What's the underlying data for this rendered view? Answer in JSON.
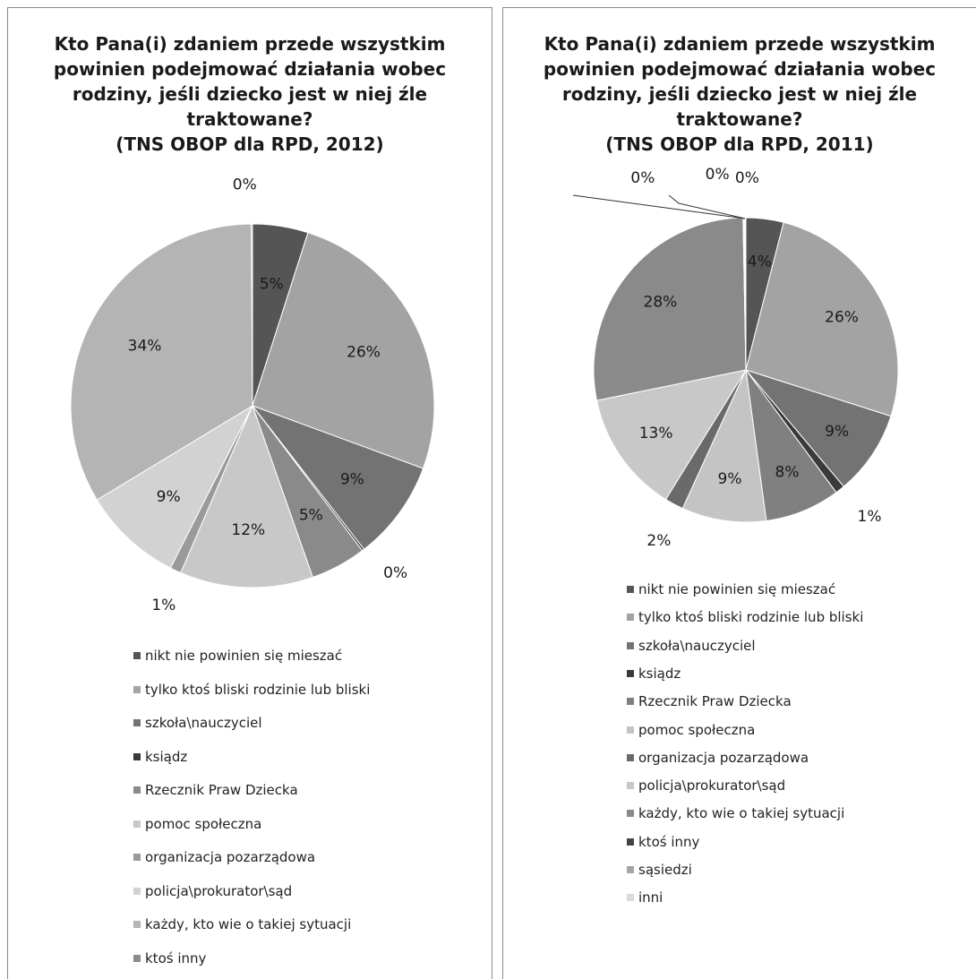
{
  "chart_data": [
    {
      "type": "pie",
      "title_lines": [
        "Kto Pana(i) zdaniem przede wszystkim",
        "powinien podejmować działania wobec",
        "rodziny, jeśli dziecko jest w niej źle",
        "traktowane?",
        "(TNS OBOP dla RPD, 2012)"
      ],
      "legend": "bottom",
      "slices": [
        {
          "label": "nikt nie powinien się mieszać",
          "value": 5,
          "display": "5%",
          "color": "#555555"
        },
        {
          "label": "tylko ktoś bliski rodzinie lub bliski",
          "value": 26,
          "display": "26%",
          "color": "#a3a3a3"
        },
        {
          "label": "szkoła\\nauczyciel",
          "value": 9,
          "display": "9%",
          "color": "#737373"
        },
        {
          "label": "ksiądz",
          "value": 0.2,
          "display": "0%",
          "color": "#3a3a3a"
        },
        {
          "label": "Rzecznik Praw Dziecka",
          "value": 5,
          "display": "5%",
          "color": "#8a8a8a"
        },
        {
          "label": "pomoc społeczna",
          "value": 12,
          "display": "12%",
          "color": "#c8c8c8"
        },
        {
          "label": "organizacja pozarządowa",
          "value": 1,
          "display": "1%",
          "color": "#9a9a9a"
        },
        {
          "label": "policja\\prokurator\\sąd",
          "value": 9,
          "display": "9%",
          "color": "#d2d2d2"
        },
        {
          "label": "każdy, kto wie o takiej sytuacji",
          "value": 34,
          "display": "34%",
          "color": "#b4b4b4"
        },
        {
          "label": "ktoś inny",
          "value": 0.1,
          "display": "0%",
          "color": "#8c8c8c"
        }
      ]
    },
    {
      "type": "pie",
      "title_lines": [
        "Kto Pana(i) zdaniem przede wszystkim",
        "powinien podejmować działania wobec",
        "rodziny, jeśli dziecko jest w niej źle",
        "traktowane?",
        "(TNS OBOP dla RPD, 2011)"
      ],
      "legend": "bottom",
      "slices": [
        {
          "label": "nikt nie powinien się mieszać",
          "value": 4,
          "display": "4%",
          "color": "#555555"
        },
        {
          "label": "tylko ktoś bliski rodzinie lub bliski",
          "value": 26,
          "display": "26%",
          "color": "#a3a3a3"
        },
        {
          "label": "szkoła\\nauczyciel",
          "value": 9,
          "display": "9%",
          "color": "#737373"
        },
        {
          "label": "ksiądz",
          "value": 1,
          "display": "1%",
          "color": "#3a3a3a"
        },
        {
          "label": "Rzecznik Praw Dziecka",
          "value": 8,
          "display": "8%",
          "color": "#808080"
        },
        {
          "label": "pomoc społeczna",
          "value": 9,
          "display": "9%",
          "color": "#c4c4c4"
        },
        {
          "label": "organizacja pozarządowa",
          "value": 2,
          "display": "2%",
          "color": "#6a6a6a"
        },
        {
          "label": "policja\\prokurator\\sąd",
          "value": 13,
          "display": "13%",
          "color": "#c8c8c8"
        },
        {
          "label": "każdy, kto wie o takiej sytuacji",
          "value": 28,
          "display": "28%",
          "color": "#8a8a8a"
        },
        {
          "label": "ktoś inny",
          "value": 0.1,
          "display": "0%",
          "color": "#444444"
        },
        {
          "label": "sąsiedzi",
          "value": 0.1,
          "display": "0%",
          "color": "#a6a6a6"
        },
        {
          "label": "inni",
          "value": 0.1,
          "display": "0%",
          "color": "#dadada"
        }
      ]
    }
  ]
}
